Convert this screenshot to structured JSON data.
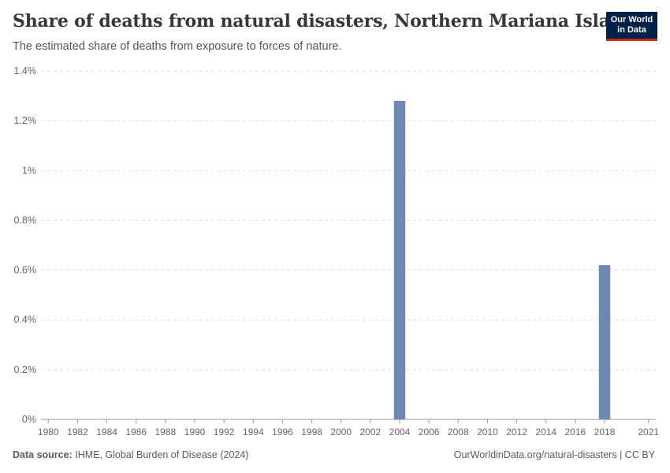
{
  "logo": {
    "line1": "Our World",
    "line2": "in Data"
  },
  "footer": {
    "source_label": "Data source:",
    "source_text": "IHME, Global Burden of Disease (2024)",
    "url_license": "OurWorldinData.org/natural-disasters | CC BY"
  },
  "colors": {
    "bar": "#6f87b2",
    "grid": "#dddddd",
    "axis": "#999999"
  },
  "chart_data": {
    "type": "bar",
    "title": "Share of deaths from natural disasters, Northern Mariana Islands",
    "subtitle": "The estimated share of deaths from exposure to forces of nature.",
    "xlabel": "",
    "ylabel": "",
    "x_range": [
      1980,
      2021
    ],
    "x_ticks": [
      1980,
      1982,
      1984,
      1986,
      1988,
      1990,
      1992,
      1994,
      1996,
      1998,
      2000,
      2002,
      2004,
      2006,
      2008,
      2010,
      2012,
      2014,
      2016,
      2018,
      2021
    ],
    "ylim": [
      0,
      1.4
    ],
    "y_ticks": [
      0,
      0.2,
      0.4,
      0.6,
      0.8,
      1,
      1.2,
      1.4
    ],
    "y_tick_labels": [
      "0%",
      "0.2%",
      "0.4%",
      "0.6%",
      "0.8%",
      "1%",
      "1.2%",
      "1.4%"
    ],
    "unit": "%",
    "grid": true,
    "series": [
      {
        "name": "Northern Mariana Islands",
        "points": [
          {
            "year": 2004,
            "value": 1.28
          },
          {
            "year": 2018,
            "value": 0.62
          }
        ]
      }
    ]
  }
}
